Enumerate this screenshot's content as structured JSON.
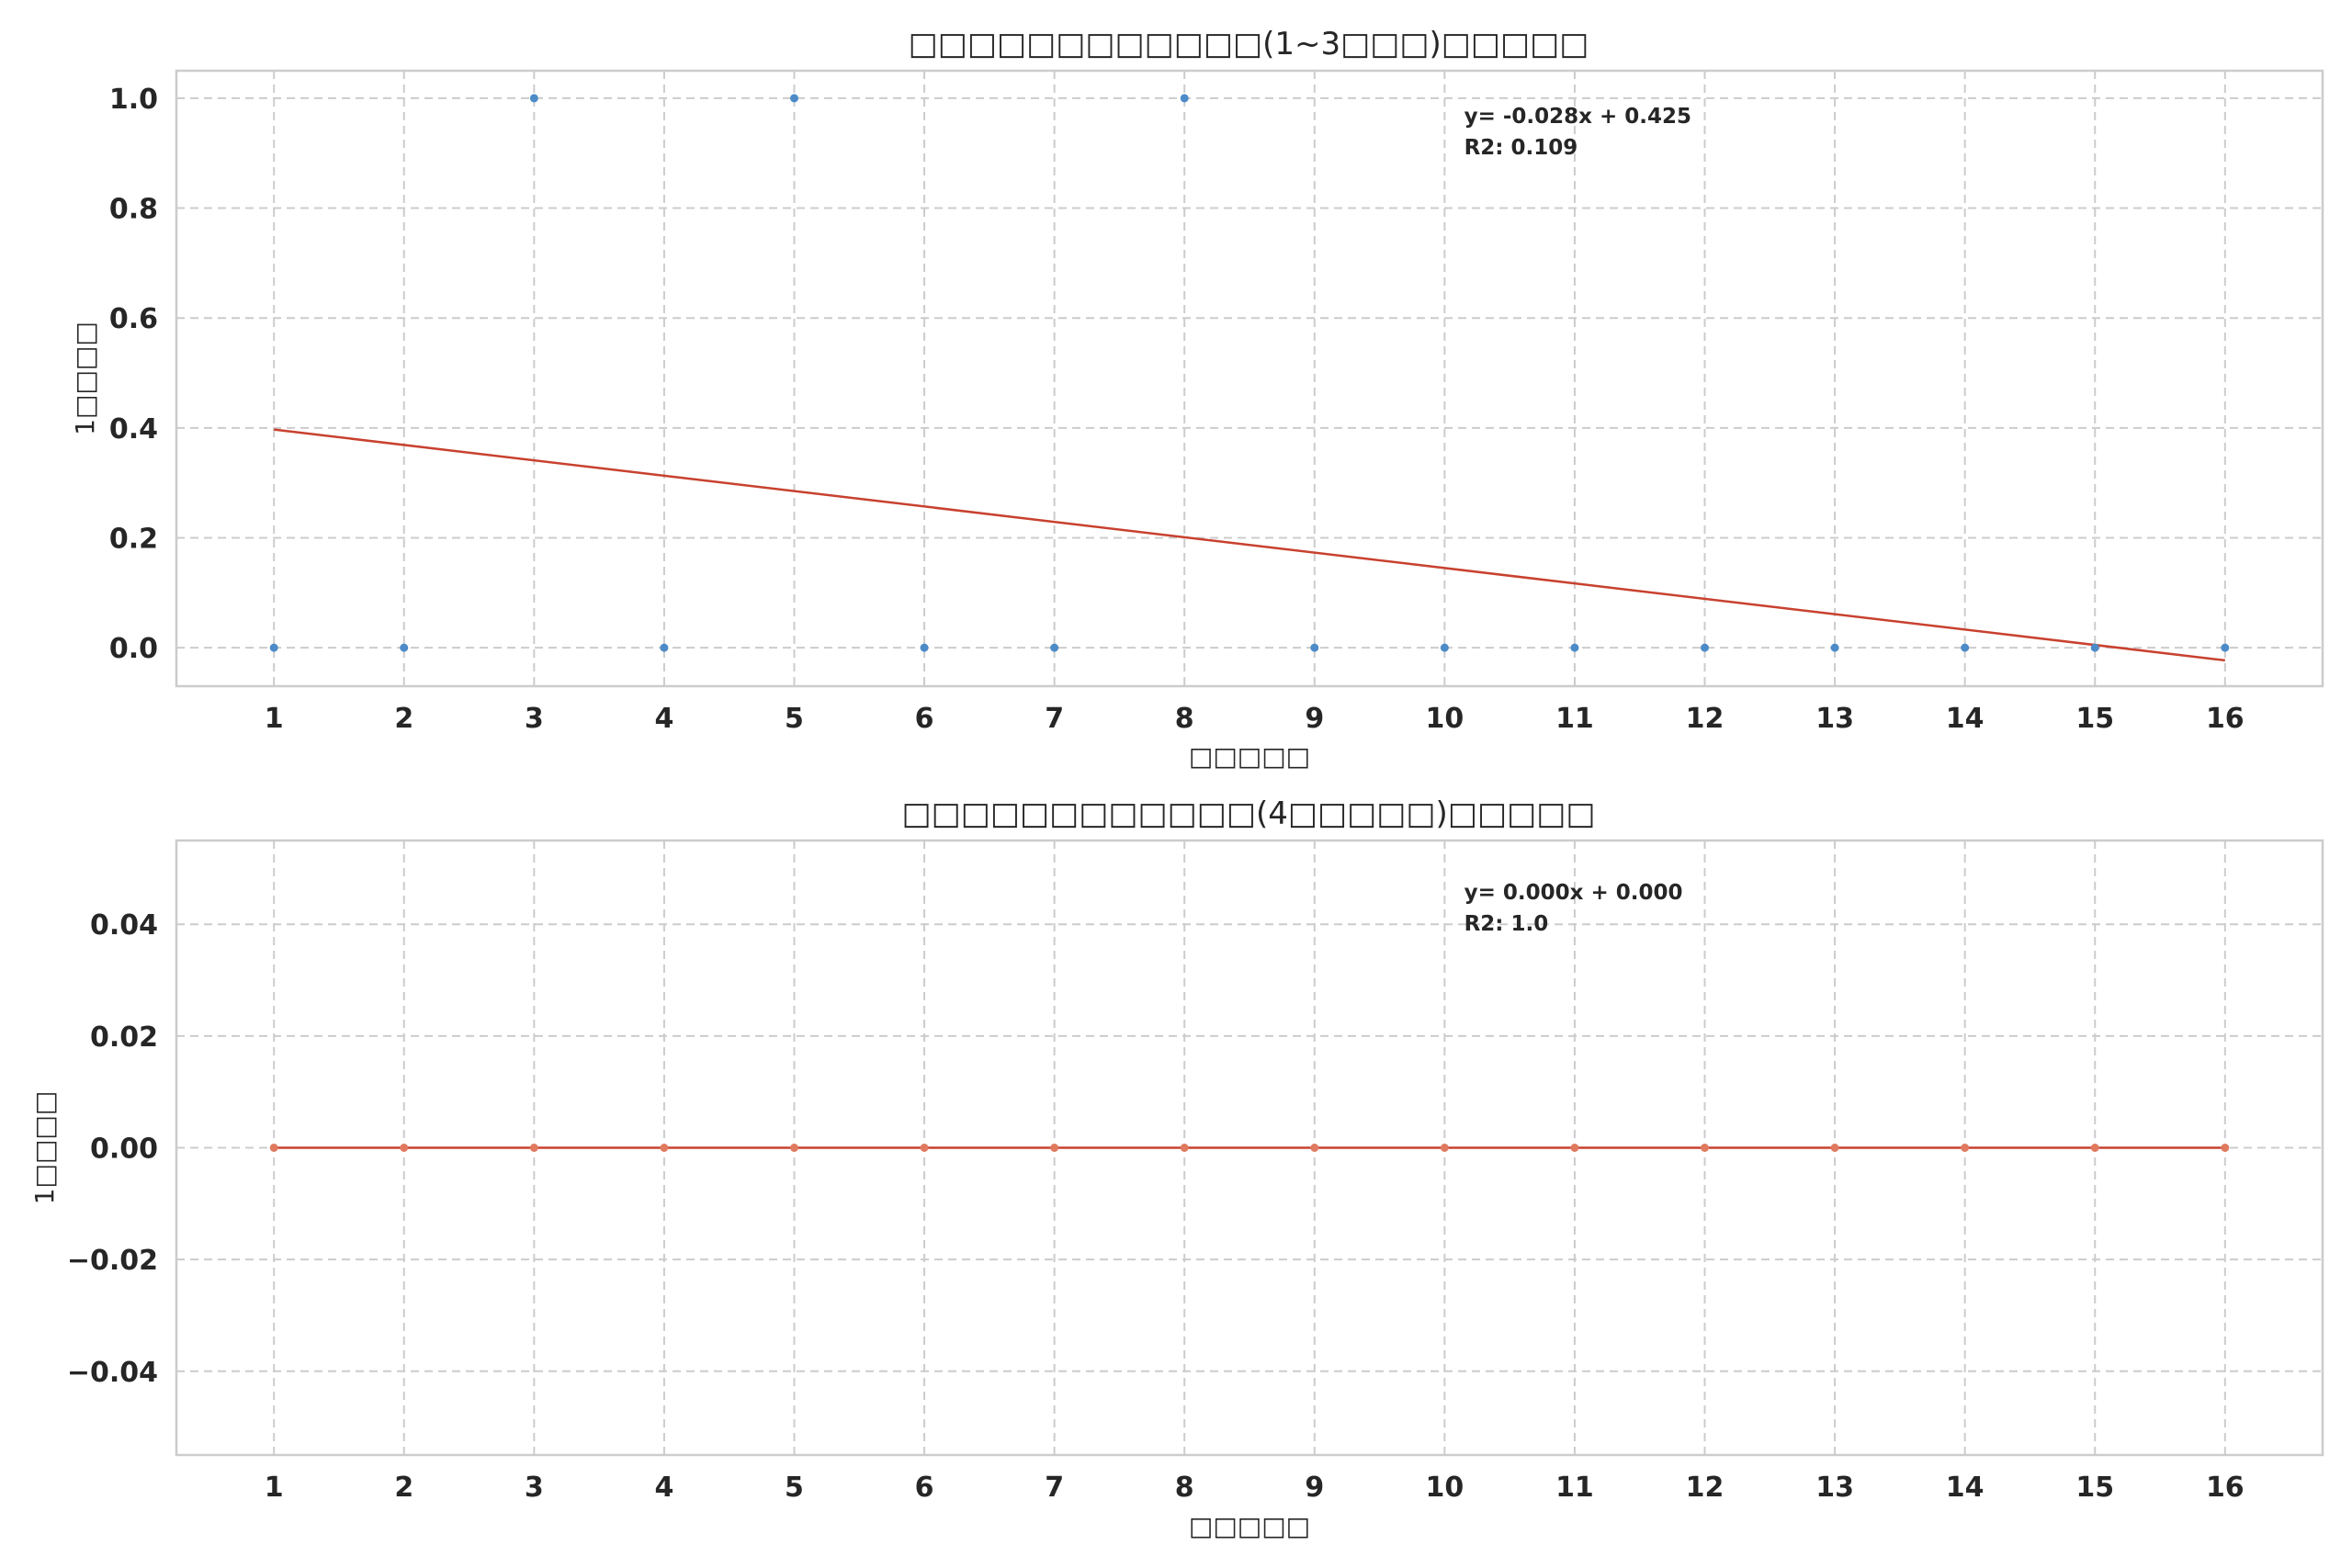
{
  "chart_data": [
    {
      "type": "scatter",
      "title": "□□□□□□□□□□□□(1~3□□□)□□□□□",
      "xlabel": "□□□□□",
      "ylabel": "1□□□□",
      "x": [
        1,
        2,
        3,
        4,
        5,
        6,
        7,
        8,
        9,
        10,
        11,
        12,
        13,
        14,
        15,
        16
      ],
      "xticks": [
        "1",
        "2",
        "3",
        "4",
        "5",
        "6",
        "7",
        "8",
        "9",
        "10",
        "11",
        "12",
        "13",
        "14",
        "15",
        "16"
      ],
      "yticks": [
        0.0,
        0.2,
        0.4,
        0.6,
        0.8,
        1.0
      ],
      "ytick_labels": [
        "0.0",
        "0.2",
        "0.4",
        "0.6",
        "0.8",
        "1.0"
      ],
      "xlim": [
        0.25,
        16.75
      ],
      "ylim": [
        -0.07,
        1.05
      ],
      "grid": true,
      "series": [
        {
          "values": [
            0,
            0,
            1,
            0,
            1,
            0,
            0,
            1,
            0,
            0,
            0,
            0,
            0,
            0,
            0,
            0
          ],
          "color": "#4c8bc8"
        }
      ],
      "fit": {
        "slope": -0.028,
        "intercept": 0.425,
        "color": "#c8412f"
      },
      "annotation": {
        "equation": "y= -0.028x + 0.425",
        "r2": "R2: 0.109",
        "x": 10.15,
        "y": 0.955
      }
    },
    {
      "type": "scatter",
      "title": "□□□□□□□□□□□□(4□□□□□)□□□□□",
      "xlabel": "□□□□□",
      "ylabel": "1□□□□",
      "x": [
        1,
        2,
        3,
        4,
        5,
        6,
        7,
        8,
        9,
        10,
        11,
        12,
        13,
        14,
        15,
        16
      ],
      "xticks": [
        "1",
        "2",
        "3",
        "4",
        "5",
        "6",
        "7",
        "8",
        "9",
        "10",
        "11",
        "12",
        "13",
        "14",
        "15",
        "16"
      ],
      "yticks": [
        -0.04,
        -0.02,
        0.0,
        0.02,
        0.04
      ],
      "ytick_labels": [
        "−0.04",
        "−0.02",
        "0.00",
        "0.02",
        "0.04"
      ],
      "xlim": [
        0.25,
        16.75
      ],
      "ylim": [
        -0.055,
        0.055
      ],
      "grid": true,
      "series": [
        {
          "values": [
            0,
            0,
            0,
            0,
            0,
            0,
            0,
            0,
            0,
            0,
            0,
            0,
            0,
            0,
            0,
            0
          ],
          "color": "#e07a5f"
        }
      ],
      "fit": {
        "slope": 0.0,
        "intercept": 0.0,
        "color": "#c8412f"
      },
      "annotation": {
        "equation": "y= 0.000x + 0.000",
        "r2": "R2: 1.0",
        "x": 10.15,
        "y": 0.0445
      }
    }
  ]
}
